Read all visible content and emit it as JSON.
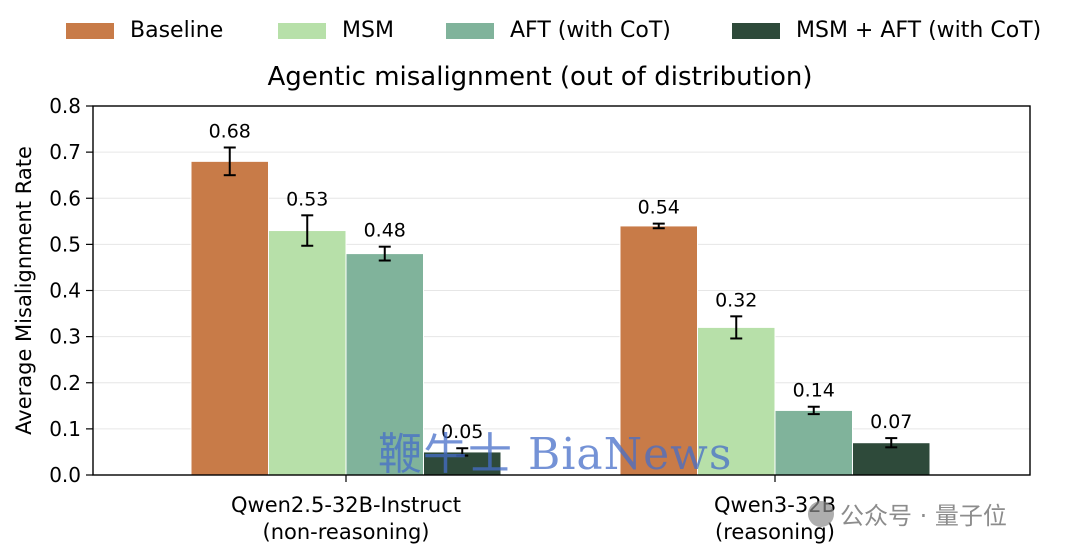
{
  "chart_data": {
    "type": "bar",
    "title": "Agentic misalignment (out of distribution)",
    "ylabel": "Average Misalignment Rate",
    "xlabel": "",
    "ylim": [
      0,
      0.8
    ],
    "yticks": [
      "0.0",
      "0.1",
      "0.2",
      "0.3",
      "0.4",
      "0.5",
      "0.6",
      "0.7",
      "0.8"
    ],
    "grid": true,
    "legend_placement": "top",
    "categories": [
      {
        "line1": "Qwen2.5-32B-Instruct",
        "line2": "(non-reasoning)"
      },
      {
        "line1": "Qwen3-32B",
        "line2": "(reasoning)"
      }
    ],
    "series": [
      {
        "name": "Baseline",
        "color": "#c87b48",
        "values": [
          0.68,
          0.54
        ],
        "errors": [
          0.03,
          0.005
        ],
        "labels": [
          "0.68",
          "0.54"
        ]
      },
      {
        "name": "MSM",
        "color": "#b7e0a9",
        "values": [
          0.53,
          0.32
        ],
        "errors": [
          0.033,
          0.024
        ],
        "labels": [
          "0.53",
          "0.32"
        ]
      },
      {
        "name": "AFT (with CoT)",
        "color": "#80b39b",
        "values": [
          0.48,
          0.14
        ],
        "errors": [
          0.015,
          0.008
        ],
        "labels": [
          "0.48",
          "0.14"
        ]
      },
      {
        "name": "MSM + AFT (with CoT)",
        "color": "#2e4a3a",
        "values": [
          0.05,
          0.07
        ],
        "errors": [
          0.008,
          0.01
        ],
        "labels": [
          "0.05",
          "0.07"
        ]
      }
    ]
  },
  "watermark": "鞭牛士 BiaNews",
  "credit": "公众号 · 量子位"
}
